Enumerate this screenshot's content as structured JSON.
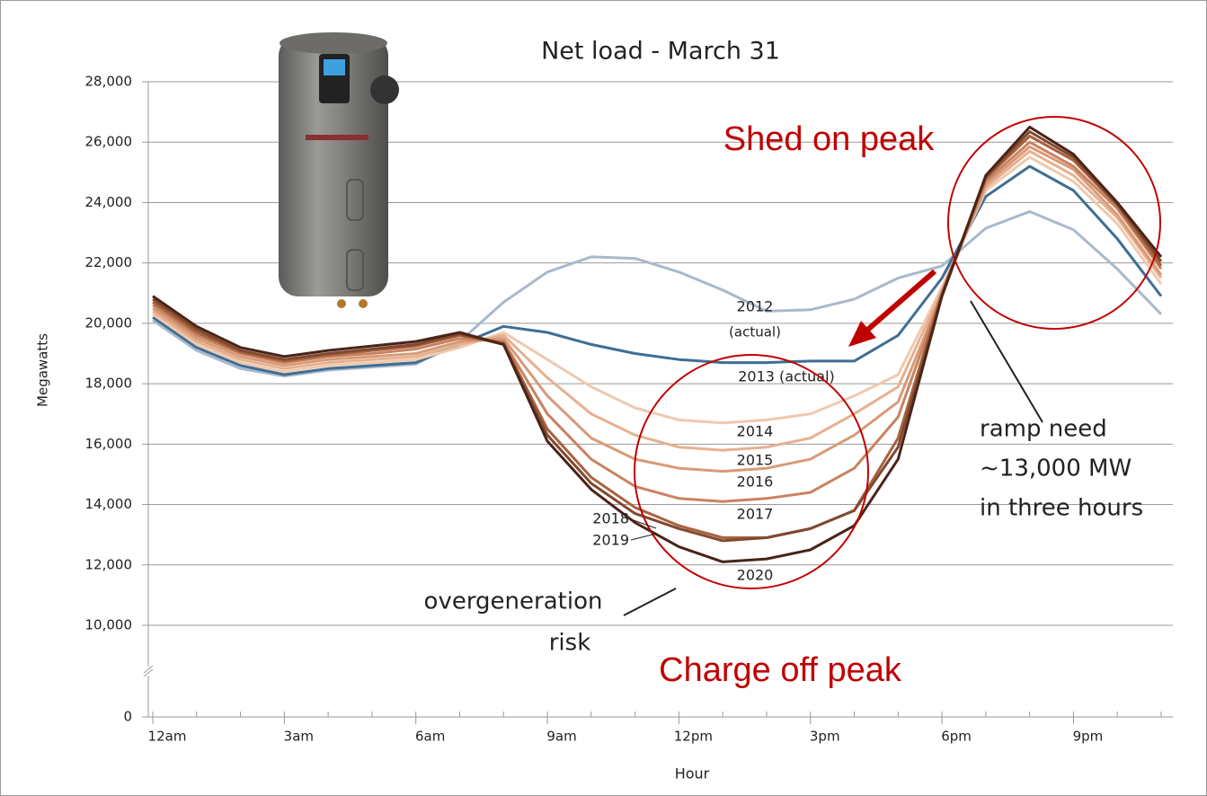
{
  "chart_data": {
    "type": "line",
    "title": "Net load - March 31",
    "y_label": "Megawatts",
    "x_label": "Hour",
    "x": [
      0,
      1,
      2,
      3,
      4,
      5,
      6,
      7,
      8,
      9,
      10,
      11,
      12,
      13,
      14,
      15,
      16,
      17,
      18,
      19,
      20,
      21,
      22,
      23
    ],
    "xlim": [
      0,
      23
    ],
    "xticks": [
      {
        "value": 0,
        "label": "12am"
      },
      {
        "value": 3,
        "label": "3am"
      },
      {
        "value": 6,
        "label": "6am"
      },
      {
        "value": 9,
        "label": "9am"
      },
      {
        "value": 12,
        "label": "12pm"
      },
      {
        "value": 15,
        "label": "3pm"
      },
      {
        "value": 18,
        "label": "6pm"
      },
      {
        "value": 21,
        "label": "9pm"
      }
    ],
    "ylim": [
      0,
      28000
    ],
    "yticks": [
      0,
      {
        "value": 10000,
        "label": "10,000"
      },
      {
        "value": 12000,
        "label": "12,000"
      },
      {
        "value": 14000,
        "label": "14,000"
      },
      {
        "value": 16000,
        "label": "16,000"
      },
      {
        "value": 18000,
        "label": "18,000"
      },
      {
        "value": 20000,
        "label": "20,000"
      },
      {
        "value": 22000,
        "label": "22,000"
      },
      {
        "value": 24000,
        "label": "24,000"
      },
      {
        "value": 26000,
        "label": "26,000"
      },
      {
        "value": 28000,
        "label": "28,000"
      }
    ],
    "y_axis_break": true,
    "grid": true,
    "series": [
      {
        "name": "2012",
        "color": "#a9b9cc",
        "values": [
          20100,
          19100,
          18500,
          18250,
          18450,
          18550,
          18650,
          19400,
          20700,
          21700,
          22200,
          22150,
          21700,
          21100,
          20400,
          20450,
          20800,
          21500,
          21900,
          23150,
          23700,
          23100,
          21800,
          20300
        ]
      },
      {
        "name": "2013 (actual)",
        "color": "#3e6e93",
        "values": [
          20200,
          19200,
          18600,
          18300,
          18500,
          18600,
          18700,
          19300,
          19900,
          19700,
          19300,
          19000,
          18800,
          18700,
          18700,
          18750,
          18750,
          19600,
          21500,
          24200,
          25200,
          24400,
          22800,
          20900
        ]
      },
      {
        "name": "2014",
        "color": "#f0c9ae",
        "values": [
          20300,
          19300,
          18700,
          18400,
          18600,
          18700,
          18800,
          19200,
          19700,
          18800,
          17900,
          17200,
          16800,
          16700,
          16800,
          17000,
          17600,
          18300,
          21200,
          24400,
          25500,
          24700,
          23300,
          21300
        ]
      },
      {
        "name": "2015",
        "color": "#e6b08f",
        "values": [
          20400,
          19400,
          18800,
          18500,
          18700,
          18800,
          18900,
          19300,
          19600,
          18200,
          17000,
          16300,
          15900,
          15800,
          15900,
          16200,
          17000,
          17900,
          21100,
          24500,
          25700,
          24900,
          23500,
          21500
        ]
      },
      {
        "name": "2016",
        "color": "#d89a78",
        "values": [
          20500,
          19500,
          18900,
          18600,
          18800,
          18900,
          19000,
          19400,
          19500,
          17600,
          16200,
          15500,
          15200,
          15100,
          15200,
          15500,
          16300,
          17400,
          21000,
          24600,
          25850,
          25100,
          23600,
          21600
        ]
      },
      {
        "name": "2017",
        "color": "#c98260",
        "values": [
          20600,
          19600,
          19000,
          18700,
          18900,
          19000,
          19150,
          19500,
          19400,
          17000,
          15500,
          14600,
          14200,
          14100,
          14200,
          14400,
          15200,
          16900,
          21000,
          24700,
          26000,
          25200,
          23800,
          21800
        ]
      },
      {
        "name": "2018",
        "color": "#a8623f",
        "values": [
          20700,
          19700,
          19050,
          18750,
          18950,
          19100,
          19250,
          19600,
          19350,
          16500,
          14900,
          13900,
          13300,
          12900,
          12900,
          13200,
          13800,
          16200,
          21000,
          24800,
          26200,
          25400,
          23900,
          21900
        ]
      },
      {
        "name": "2019",
        "color": "#7f4a2f",
        "values": [
          20800,
          19800,
          19100,
          18800,
          19000,
          19150,
          19300,
          19650,
          19300,
          16300,
          14700,
          13700,
          13200,
          12800,
          12900,
          13200,
          13800,
          15900,
          20900,
          24850,
          26350,
          25500,
          23950,
          22050
        ]
      },
      {
        "name": "2020",
        "color": "#4a2418",
        "values": [
          20900,
          19900,
          19200,
          18900,
          19100,
          19250,
          19400,
          19700,
          19300,
          16100,
          14500,
          13400,
          12600,
          12100,
          12200,
          12500,
          13300,
          15500,
          20900,
          24900,
          26500,
          25600,
          24000,
          22200
        ]
      }
    ],
    "annotations": [
      "(actual)",
      "overgeneration",
      "risk",
      "ramp need",
      "~13,000 MW",
      "in three hours",
      "Shed on peak",
      "Charge off peak"
    ]
  }
}
